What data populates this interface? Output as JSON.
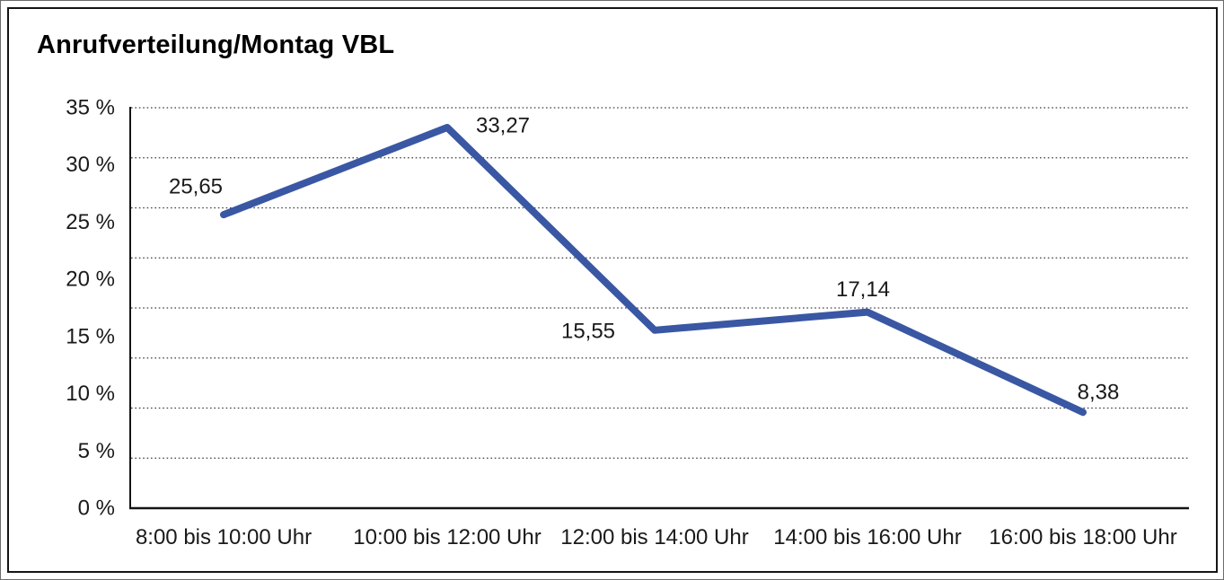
{
  "title": "Anrufverteilung/Montag VBL",
  "chart_data": {
    "type": "line",
    "title": "Anrufverteilung/Montag VBL",
    "categories": [
      "8:00 bis 10:00 Uhr",
      "10:00 bis 12:00 Uhr",
      "12:00 bis 14:00 Uhr",
      "14:00 bis 16:00 Uhr",
      "16:00 bis 18:00 Uhr"
    ],
    "values": [
      25.65,
      33.27,
      15.55,
      17.14,
      8.38
    ],
    "value_labels": [
      "25,65",
      "33,27",
      "15,55",
      "17,14",
      "8,38"
    ],
    "series_name": "Anrufverteilung Montag VBL",
    "xlabel": "",
    "ylabel": "",
    "ylim": [
      0,
      35
    ],
    "y_tick_labels": [
      "35 %",
      "30 %",
      "25 %",
      "20 %",
      "15 %",
      "10 %",
      "5 %",
      "0 %"
    ],
    "grid": "horizontal-dotted",
    "gridline_intervals": 8,
    "legend": "none",
    "colors": {
      "series": "#3A57A4",
      "axis": "#141414",
      "grid": "#3f3f3f",
      "text": "#1a1a1a",
      "background": "#ffffff",
      "frame": "#151515"
    }
  }
}
